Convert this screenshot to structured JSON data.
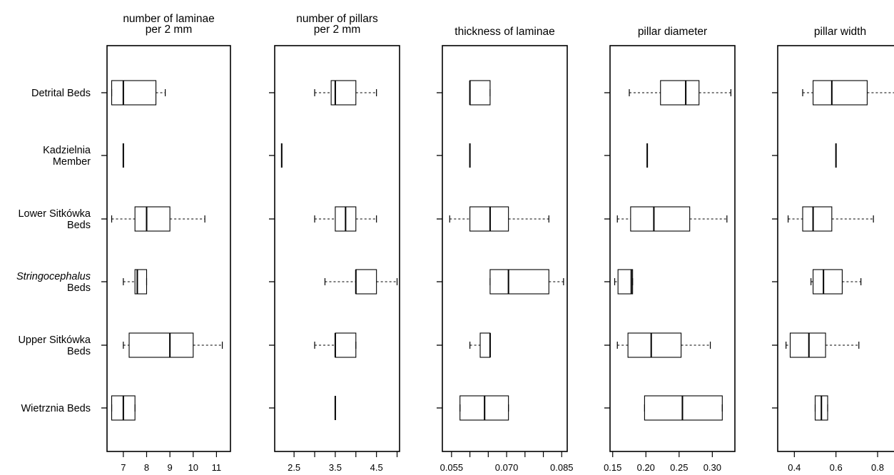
{
  "chart_data": {
    "type": "boxplot",
    "orientation": "horizontal",
    "categories": [
      {
        "lines": [
          "Detrital Beds"
        ]
      },
      {
        "lines": [
          "Kadzielnia",
          "Member"
        ]
      },
      {
        "lines": [
          "Lower Sitkówka",
          "Beds"
        ]
      },
      {
        "lines": [
          "Stringocephalus",
          "Beds"
        ],
        "italic_first_line": true
      },
      {
        "lines": [
          "Upper Sitkówka",
          "Beds"
        ]
      },
      {
        "lines": [
          "Wietrznia Beds"
        ]
      }
    ],
    "panels": [
      {
        "title": [
          "number of laminae",
          "per 2 mm"
        ],
        "xlim": [
          6.3,
          11.6
        ],
        "ticks": [
          "7",
          "8",
          "9",
          "10",
          "11"
        ],
        "boxes": [
          {
            "min": 6.5,
            "q1": 6.5,
            "median": 7.0,
            "q3": 8.4,
            "max": 8.8
          },
          {
            "min": 7.0,
            "q1": 7.0,
            "median": 7.0,
            "q3": 7.0,
            "max": 7.0
          },
          {
            "min": 6.5,
            "q1": 7.5,
            "median": 8.0,
            "q3": 9.0,
            "max": 10.5
          },
          {
            "min": 7.0,
            "q1": 7.5,
            "median": 7.6,
            "q3": 8.0,
            "max": 8.0
          },
          {
            "min": 7.0,
            "q1": 7.25,
            "median": 9.0,
            "q3": 10.0,
            "max": 11.25
          },
          {
            "min": 6.5,
            "q1": 6.5,
            "median": 7.0,
            "q3": 7.5,
            "max": 7.5
          }
        ]
      },
      {
        "title": [
          "number of pillars",
          "per 2 mm"
        ],
        "xlim": [
          2.03,
          5.06
        ],
        "ticks": [
          "2.5",
          "",
          "3.5",
          "",
          "4.5",
          ""
        ],
        "tick_values": [
          2.5,
          3.0,
          3.5,
          4.0,
          4.5,
          5.0
        ],
        "boxes": [
          {
            "min": 3.0,
            "q1": 3.4,
            "median": 3.5,
            "q3": 4.0,
            "max": 4.5
          },
          {
            "min": 2.2,
            "q1": 2.2,
            "median": 2.2,
            "q3": 2.2,
            "max": 2.2
          },
          {
            "min": 3.0,
            "q1": 3.5,
            "median": 3.75,
            "q3": 4.0,
            "max": 4.5
          },
          {
            "min": 3.25,
            "q1": 4.0,
            "median": 4.0,
            "q3": 4.5,
            "max": 5.0
          },
          {
            "min": 3.0,
            "q1": 3.5,
            "median": 3.5,
            "q3": 4.0,
            "max": 4.0
          },
          {
            "min": 3.5,
            "q1": 3.5,
            "median": 3.5,
            "q3": 3.5,
            "max": 3.5
          }
        ]
      },
      {
        "title": [
          "thickness of laminae"
        ],
        "xlim": [
          0.0525,
          0.0865
        ],
        "ticks": [
          "0.055",
          "",
          "",
          "0.070",
          "",
          "",
          "0.085"
        ],
        "tick_values": [
          0.055,
          0.06,
          0.065,
          0.07,
          0.075,
          0.08,
          0.085
        ],
        "boxes": [
          {
            "min": 0.06,
            "q1": 0.06,
            "median": 0.06,
            "q3": 0.0655,
            "max": 0.0655
          },
          {
            "min": 0.06,
            "q1": 0.06,
            "median": 0.06,
            "q3": 0.06,
            "max": 0.06
          },
          {
            "min": 0.0545,
            "q1": 0.06,
            "median": 0.0655,
            "q3": 0.0705,
            "max": 0.0815
          },
          {
            "min": 0.0655,
            "q1": 0.0655,
            "median": 0.0705,
            "q3": 0.0815,
            "max": 0.0855
          },
          {
            "min": 0.06,
            "q1": 0.0628,
            "median": 0.0655,
            "q3": 0.0655,
            "max": 0.0655
          },
          {
            "min": 0.0573,
            "q1": 0.0573,
            "median": 0.064,
            "q3": 0.0705,
            "max": 0.0705
          }
        ]
      },
      {
        "title": [
          "pillar diameter"
        ],
        "xlim": [
          0.146,
          0.334
        ],
        "ticks": [
          "0.15",
          "0.20",
          "0.25",
          "0.30"
        ],
        "tick_values": [
          0.15,
          0.2,
          0.25,
          0.3
        ],
        "boxes": [
          {
            "min": 0.175,
            "q1": 0.222,
            "median": 0.26,
            "q3": 0.28,
            "max": 0.328
          },
          {
            "min": 0.202,
            "q1": 0.202,
            "median": 0.202,
            "q3": 0.202,
            "max": 0.202
          },
          {
            "min": 0.157,
            "q1": 0.177,
            "median": 0.212,
            "q3": 0.266,
            "max": 0.322
          },
          {
            "min": 0.153,
            "q1": 0.158,
            "median": 0.178,
            "q3": 0.18,
            "max": 0.18
          },
          {
            "min": 0.157,
            "q1": 0.173,
            "median": 0.208,
            "q3": 0.253,
            "max": 0.297
          },
          {
            "min": 0.198,
            "q1": 0.198,
            "median": 0.255,
            "q3": 0.315,
            "max": 0.315
          }
        ]
      },
      {
        "title": [
          "pillar width"
        ],
        "xlim": [
          0.32,
          0.92
        ],
        "ticks": [
          "0.4",
          "0.6",
          "0.8"
        ],
        "tick_values": [
          0.4,
          0.6,
          0.8
        ],
        "boxes": [
          {
            "min": 0.44,
            "q1": 0.49,
            "median": 0.58,
            "q3": 0.75,
            "max": 0.93
          },
          {
            "min": 0.6,
            "q1": 0.6,
            "median": 0.6,
            "q3": 0.6,
            "max": 0.6
          },
          {
            "min": 0.37,
            "q1": 0.44,
            "median": 0.49,
            "q3": 0.58,
            "max": 0.78
          },
          {
            "min": 0.48,
            "q1": 0.49,
            "median": 0.54,
            "q3": 0.63,
            "max": 0.72
          },
          {
            "min": 0.36,
            "q1": 0.38,
            "median": 0.47,
            "q3": 0.55,
            "max": 0.71
          },
          {
            "min": 0.5,
            "q1": 0.5,
            "median": 0.53,
            "q3": 0.56,
            "max": 0.56
          }
        ]
      }
    ]
  }
}
